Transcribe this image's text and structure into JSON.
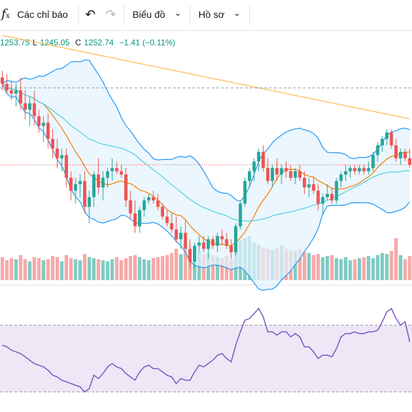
{
  "toolbar": {
    "fx_symbol": "f",
    "fx_sub": "x",
    "indicators_label": "Các chỉ báo",
    "undo_glyph": "↶",
    "redo_glyph": "↷",
    "chart_menu_label": "Biểu đồ",
    "profile_menu_label": "Hồ sơ",
    "caret_glyph": "⌄",
    "icons": [
      "fx-icon",
      "undo-icon",
      "redo-icon",
      "chevron-down-icon"
    ]
  },
  "legend": {
    "open_value": "1253.75",
    "low_key": "L",
    "low_value": "1245.05",
    "close_key": "C",
    "close_value": "1252.74",
    "change": "−1.41 (−0.11%)"
  },
  "colors": {
    "up": "#26a69a",
    "down": "#ef5350",
    "upVol": "#80cbc4",
    "downVol": "#f7a9a7",
    "bb": "#2196f3",
    "bbFill": "#e3f2fd",
    "ma": "#f57c00",
    "maSlow": "#4dd0e1",
    "maLong": "#ffb74d",
    "rsi": "#7e57c2",
    "rsiFill": "#ede7f6",
    "priceLine": "#ef5350",
    "dash": "#9598a1",
    "legendText": "#089981"
  },
  "chart_data": {
    "type": "candlestick",
    "candles": [
      {
        "o": 62,
        "h": 64,
        "l": 58,
        "c": 60
      },
      {
        "o": 60,
        "h": 63,
        "l": 57,
        "c": 58
      },
      {
        "o": 58,
        "h": 61,
        "l": 55,
        "c": 57
      },
      {
        "o": 57,
        "h": 60,
        "l": 53,
        "c": 58
      },
      {
        "o": 58,
        "h": 62,
        "l": 52,
        "c": 54
      },
      {
        "o": 54,
        "h": 58,
        "l": 49,
        "c": 52
      },
      {
        "o": 52,
        "h": 56,
        "l": 47,
        "c": 54
      },
      {
        "o": 54,
        "h": 58,
        "l": 47,
        "c": 50
      },
      {
        "o": 50,
        "h": 52,
        "l": 45,
        "c": 47
      },
      {
        "o": 47,
        "h": 50,
        "l": 42,
        "c": 48
      },
      {
        "o": 48,
        "h": 51,
        "l": 40,
        "c": 43
      },
      {
        "o": 43,
        "h": 46,
        "l": 37,
        "c": 40
      },
      {
        "o": 40,
        "h": 43,
        "l": 34,
        "c": 37
      },
      {
        "o": 37,
        "h": 40,
        "l": 33,
        "c": 38
      },
      {
        "o": 38,
        "h": 40,
        "l": 28,
        "c": 31
      },
      {
        "o": 31,
        "h": 33,
        "l": 24,
        "c": 27
      },
      {
        "o": 27,
        "h": 31,
        "l": 23,
        "c": 29
      },
      {
        "o": 29,
        "h": 32,
        "l": 25,
        "c": 30
      },
      {
        "o": 30,
        "h": 33,
        "l": 20,
        "c": 22
      },
      {
        "o": 22,
        "h": 27,
        "l": 17,
        "c": 25
      },
      {
        "o": 25,
        "h": 33,
        "l": 22,
        "c": 32
      },
      {
        "o": 32,
        "h": 37,
        "l": 26,
        "c": 28
      },
      {
        "o": 28,
        "h": 33,
        "l": 24,
        "c": 31
      },
      {
        "o": 31,
        "h": 34,
        "l": 28,
        "c": 33
      },
      {
        "o": 33,
        "h": 37,
        "l": 30,
        "c": 34
      },
      {
        "o": 34,
        "h": 36,
        "l": 32,
        "c": 33
      },
      {
        "o": 33,
        "h": 35,
        "l": 31,
        "c": 32
      },
      {
        "o": 32,
        "h": 34,
        "l": 22,
        "c": 24
      },
      {
        "o": 24,
        "h": 27,
        "l": 18,
        "c": 20
      },
      {
        "o": 20,
        "h": 24,
        "l": 14,
        "c": 16
      },
      {
        "o": 16,
        "h": 22,
        "l": 14,
        "c": 21
      },
      {
        "o": 21,
        "h": 25,
        "l": 19,
        "c": 24
      },
      {
        "o": 24,
        "h": 26,
        "l": 23,
        "c": 25
      },
      {
        "o": 25,
        "h": 27,
        "l": 23,
        "c": 24
      },
      {
        "o": 24,
        "h": 26,
        "l": 21,
        "c": 22
      },
      {
        "o": 22,
        "h": 23,
        "l": 18,
        "c": 19
      },
      {
        "o": 19,
        "h": 21,
        "l": 16,
        "c": 17
      },
      {
        "o": 17,
        "h": 20,
        "l": 14,
        "c": 15
      },
      {
        "o": 15,
        "h": 19,
        "l": 11,
        "c": 12
      },
      {
        "o": 12,
        "h": 16,
        "l": 9,
        "c": 14
      },
      {
        "o": 14,
        "h": 18,
        "l": 8,
        "c": 9
      },
      {
        "o": 9,
        "h": 12,
        "l": 3,
        "c": 5
      },
      {
        "o": 5,
        "h": 11,
        "l": 3,
        "c": 10
      },
      {
        "o": 10,
        "h": 13,
        "l": 8,
        "c": 11
      },
      {
        "o": 11,
        "h": 13,
        "l": 8,
        "c": 9
      },
      {
        "o": 9,
        "h": 13,
        "l": 6,
        "c": 12
      },
      {
        "o": 12,
        "h": 13,
        "l": 9,
        "c": 10
      },
      {
        "o": 10,
        "h": 14,
        "l": 8,
        "c": 13
      },
      {
        "o": 13,
        "h": 15,
        "l": 10,
        "c": 12
      },
      {
        "o": 12,
        "h": 14,
        "l": 9,
        "c": 10
      },
      {
        "o": 10,
        "h": 12,
        "l": 6,
        "c": 8
      },
      {
        "o": 8,
        "h": 17,
        "l": 7,
        "c": 16
      },
      {
        "o": 16,
        "h": 24,
        "l": 15,
        "c": 23
      },
      {
        "o": 23,
        "h": 31,
        "l": 22,
        "c": 30
      },
      {
        "o": 30,
        "h": 34,
        "l": 28,
        "c": 33
      },
      {
        "o": 33,
        "h": 37,
        "l": 30,
        "c": 36
      },
      {
        "o": 36,
        "h": 40,
        "l": 33,
        "c": 39
      },
      {
        "o": 39,
        "h": 41,
        "l": 33,
        "c": 34
      },
      {
        "o": 34,
        "h": 37,
        "l": 29,
        "c": 30
      },
      {
        "o": 30,
        "h": 35,
        "l": 28,
        "c": 34
      },
      {
        "o": 34,
        "h": 37,
        "l": 30,
        "c": 32
      },
      {
        "o": 32,
        "h": 35,
        "l": 29,
        "c": 34
      },
      {
        "o": 34,
        "h": 36,
        "l": 31,
        "c": 33
      },
      {
        "o": 33,
        "h": 35,
        "l": 30,
        "c": 31
      },
      {
        "o": 31,
        "h": 34,
        "l": 29,
        "c": 33
      },
      {
        "o": 33,
        "h": 35,
        "l": 30,
        "c": 31
      },
      {
        "o": 31,
        "h": 33,
        "l": 26,
        "c": 28
      },
      {
        "o": 28,
        "h": 31,
        "l": 25,
        "c": 29
      },
      {
        "o": 29,
        "h": 31,
        "l": 26,
        "c": 27
      },
      {
        "o": 27,
        "h": 29,
        "l": 21,
        "c": 23
      },
      {
        "o": 23,
        "h": 26,
        "l": 20,
        "c": 25
      },
      {
        "o": 25,
        "h": 29,
        "l": 24,
        "c": 26
      },
      {
        "o": 26,
        "h": 28,
        "l": 23,
        "c": 24
      },
      {
        "o": 24,
        "h": 31,
        "l": 23,
        "c": 30
      },
      {
        "o": 30,
        "h": 33,
        "l": 28,
        "c": 32
      },
      {
        "o": 32,
        "h": 35,
        "l": 30,
        "c": 33
      },
      {
        "o": 33,
        "h": 35,
        "l": 31,
        "c": 34
      },
      {
        "o": 34,
        "h": 35,
        "l": 32,
        "c": 33
      },
      {
        "o": 33,
        "h": 35,
        "l": 32,
        "c": 34
      },
      {
        "o": 34,
        "h": 35,
        "l": 32,
        "c": 33
      },
      {
        "o": 33,
        "h": 36,
        "l": 32,
        "c": 34
      },
      {
        "o": 34,
        "h": 39,
        "l": 33,
        "c": 38
      },
      {
        "o": 38,
        "h": 42,
        "l": 36,
        "c": 41
      },
      {
        "o": 41,
        "h": 44,
        "l": 39,
        "c": 43
      },
      {
        "o": 43,
        "h": 46,
        "l": 41,
        "c": 45
      },
      {
        "o": 45,
        "h": 46,
        "l": 40,
        "c": 41
      },
      {
        "o": 41,
        "h": 43,
        "l": 36,
        "c": 37
      },
      {
        "o": 37,
        "h": 40,
        "l": 35,
        "c": 39
      },
      {
        "o": 39,
        "h": 40,
        "l": 36,
        "c": 37
      },
      {
        "o": 37,
        "h": 40,
        "l": 34,
        "c": 35
      }
    ],
    "volumes": [
      22,
      19,
      21,
      20,
      24,
      20,
      18,
      22,
      21,
      19,
      20,
      23,
      22,
      18,
      24,
      21,
      20,
      19,
      25,
      22,
      21,
      20,
      19,
      18,
      20,
      22,
      19,
      21,
      23,
      24,
      22,
      20,
      19,
      21,
      22,
      23,
      24,
      26,
      30,
      25,
      28,
      34,
      30,
      27,
      25,
      26,
      24,
      22,
      21,
      23,
      20,
      32,
      38,
      40,
      42,
      36,
      34,
      31,
      30,
      29,
      31,
      33,
      30,
      29,
      28,
      30,
      27,
      26,
      24,
      25,
      22,
      23,
      24,
      21,
      20,
      22,
      19,
      20,
      21,
      22,
      23,
      21,
      24,
      26,
      25,
      28,
      40,
      24,
      20,
      23
    ],
    "rsi": [
      58,
      57,
      55,
      54,
      53,
      51,
      49,
      47,
      46,
      45,
      43,
      40,
      39,
      37,
      36,
      35,
      34,
      33,
      30,
      32,
      40,
      38,
      41,
      45,
      47,
      45,
      44,
      41,
      39,
      37,
      42,
      45,
      46,
      44,
      44,
      42,
      40,
      39,
      35,
      38,
      37,
      37,
      42,
      46,
      45,
      47,
      49,
      52,
      53,
      50,
      48,
      58,
      66,
      73,
      74,
      77,
      80,
      75,
      66,
      66,
      64,
      66,
      66,
      63,
      65,
      63,
      57,
      57,
      54,
      50,
      52,
      52,
      51,
      56,
      63,
      65,
      65,
      66,
      65,
      65,
      66,
      66,
      67,
      72,
      78,
      80,
      74,
      70,
      72,
      60
    ],
    "rsi_levels": [
      70,
      30
    ],
    "price_range": [
      0,
      70
    ],
    "rsi_range": [
      20,
      90
    ]
  }
}
